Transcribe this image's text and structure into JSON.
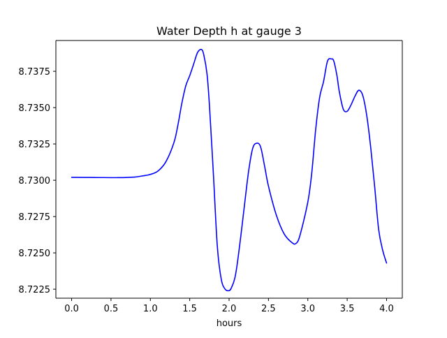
{
  "chart_data": {
    "type": "line",
    "title": "Water Depth h at gauge 3",
    "xlabel": "hours",
    "ylabel": "",
    "xlim": [
      -0.2,
      4.2
    ],
    "ylim": [
      8.72188,
      8.73962
    ],
    "grid": false,
    "x_ticks": [
      0.0,
      0.5,
      1.0,
      1.5,
      2.0,
      2.5,
      3.0,
      3.5,
      4.0
    ],
    "x_tick_labels": [
      "0.0",
      "0.5",
      "1.0",
      "1.5",
      "2.0",
      "2.5",
      "3.0",
      "3.5",
      "4.0"
    ],
    "y_ticks": [
      8.7225,
      8.725,
      8.7275,
      8.73,
      8.7325,
      8.735,
      8.7375
    ],
    "y_tick_labels": [
      "8.7225",
      "8.7250",
      "8.7275",
      "8.7300",
      "8.7325",
      "8.7350",
      "8.7375"
    ],
    "series": [
      {
        "color": "#0000ff",
        "x": [
          0.0,
          0.3,
          0.6,
          0.8,
          0.9,
          1.0,
          1.1,
          1.2,
          1.3,
          1.35,
          1.4,
          1.45,
          1.5,
          1.55,
          1.6,
          1.65,
          1.68,
          1.72,
          1.75,
          1.8,
          1.85,
          1.9,
          1.95,
          2.0,
          2.03,
          2.07,
          2.1,
          2.15,
          2.2,
          2.25,
          2.3,
          2.35,
          2.4,
          2.45,
          2.5,
          2.6,
          2.7,
          2.8,
          2.85,
          2.9,
          3.0,
          3.05,
          3.1,
          3.15,
          3.2,
          3.25,
          3.3,
          3.33,
          3.37,
          3.4,
          3.45,
          3.5,
          3.55,
          3.6,
          3.65,
          3.7,
          3.75,
          3.8,
          3.85,
          3.9,
          3.95,
          4.0
        ],
        "y": [
          8.7302,
          8.73019,
          8.73018,
          8.73022,
          8.7303,
          8.7304,
          8.73065,
          8.7313,
          8.7326,
          8.7338,
          8.7353,
          8.7365,
          8.7372,
          8.738,
          8.7388,
          8.739,
          8.7386,
          8.7373,
          8.7352,
          8.7305,
          8.7255,
          8.7232,
          8.7225,
          8.7224,
          8.7226,
          8.7232,
          8.7241,
          8.7262,
          8.7285,
          8.7307,
          8.7322,
          8.73255,
          8.7323,
          8.731,
          8.7296,
          8.7276,
          8.7263,
          8.7257,
          8.72565,
          8.7262,
          8.7285,
          8.7305,
          8.7335,
          8.7357,
          8.7368,
          8.7382,
          8.73835,
          8.7382,
          8.7372,
          8.7361,
          8.7349,
          8.73475,
          8.7352,
          8.7358,
          8.7362,
          8.7358,
          8.7344,
          8.7322,
          8.7295,
          8.7266,
          8.7252,
          8.7243
        ]
      }
    ]
  }
}
